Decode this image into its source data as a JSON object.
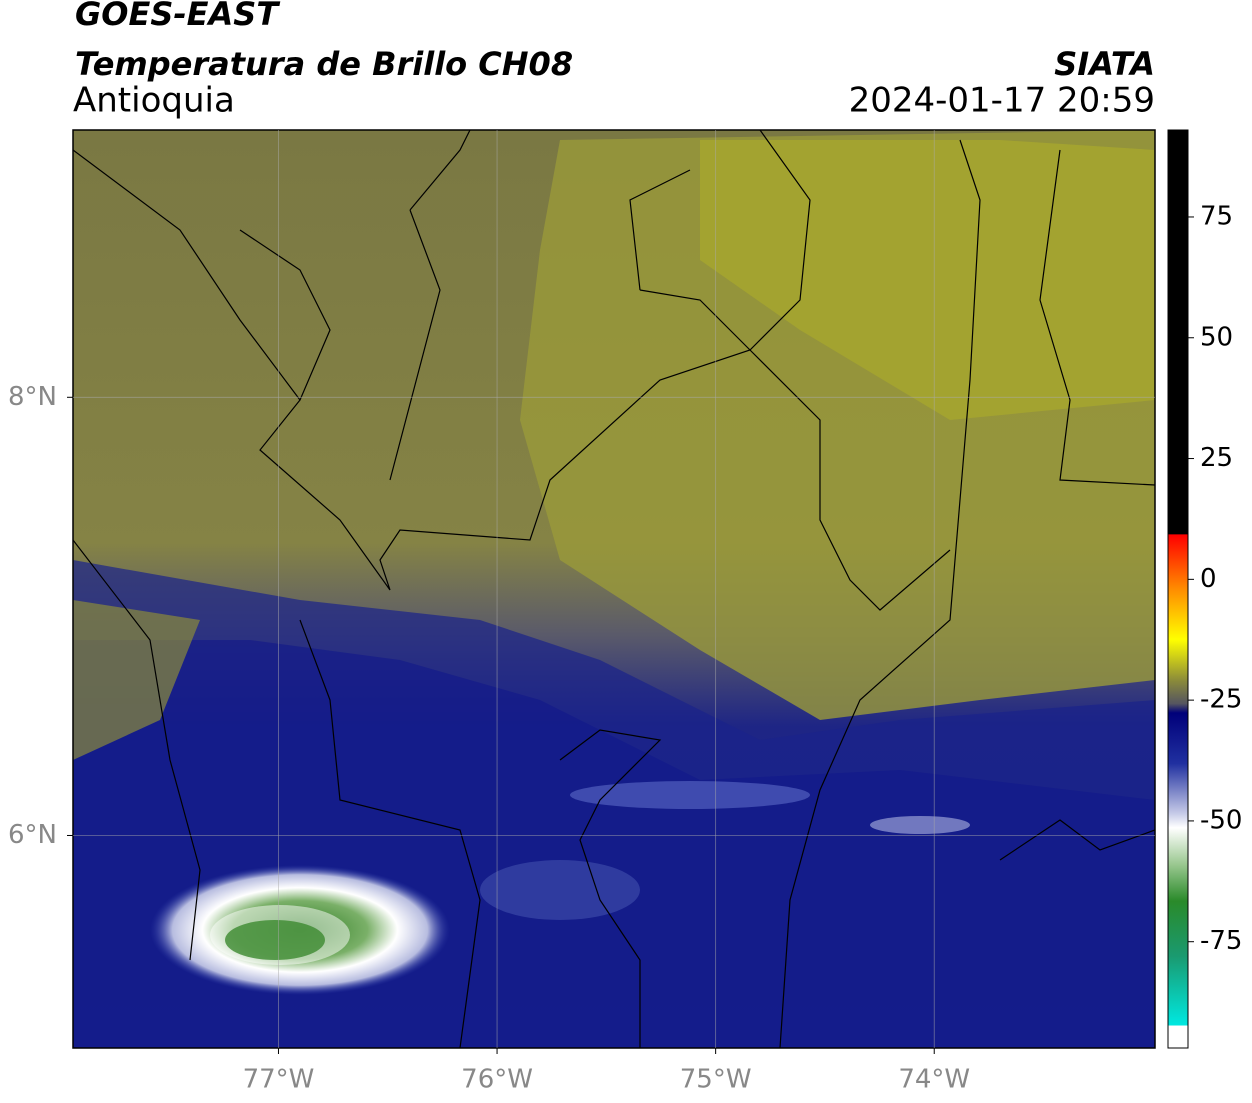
{
  "header": {
    "title": "GOES-EAST",
    "subtitle": "Temperatura de Brillo CH08",
    "region": "Antioquia",
    "source": "SIATA",
    "datetime": "2024-01-17 20:59"
  },
  "map": {
    "xlim": [
      -77.94,
      -72.99
    ],
    "ylim": [
      5.03,
      9.22
    ],
    "xticks": [
      {
        "value": -77,
        "label": "77°W"
      },
      {
        "value": -76,
        "label": "76°W"
      },
      {
        "value": -75,
        "label": "75°W"
      },
      {
        "value": -74,
        "label": "74°W"
      }
    ],
    "yticks": [
      {
        "value": 8,
        "label": "8°N"
      },
      {
        "value": 6,
        "label": "6°N"
      }
    ],
    "grid": true
  },
  "colorbar": {
    "lim": [
      -97,
      93
    ],
    "ticks": [
      75,
      50,
      25,
      0,
      -25,
      -50,
      -75
    ]
  }
}
